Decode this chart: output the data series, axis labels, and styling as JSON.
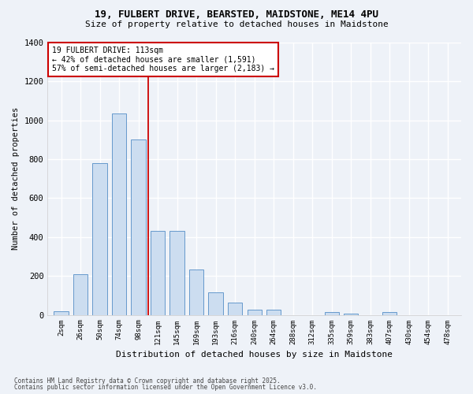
{
  "title_line1": "19, FULBERT DRIVE, BEARSTED, MAIDSTONE, ME14 4PU",
  "title_line2": "Size of property relative to detached houses in Maidstone",
  "xlabel": "Distribution of detached houses by size in Maidstone",
  "ylabel": "Number of detached properties",
  "bar_color": "#ccddf0",
  "bar_edge_color": "#6699cc",
  "background_color": "#eef2f8",
  "grid_color": "#ffffff",
  "categories": [
    "2sqm",
    "26sqm",
    "50sqm",
    "74sqm",
    "98sqm",
    "121sqm",
    "145sqm",
    "169sqm",
    "193sqm",
    "216sqm",
    "240sqm",
    "264sqm",
    "288sqm",
    "312sqm",
    "335sqm",
    "359sqm",
    "383sqm",
    "407sqm",
    "430sqm",
    "454sqm",
    "478sqm"
  ],
  "values": [
    20,
    210,
    780,
    1035,
    900,
    430,
    430,
    235,
    115,
    65,
    25,
    25,
    0,
    0,
    15,
    5,
    0,
    15,
    0,
    0,
    0
  ],
  "annotation_label": "19 FULBERT DRIVE: 113sqm",
  "annotation_line2": "← 42% of detached houses are smaller (1,591)",
  "annotation_line3": "57% of semi-detached houses are larger (2,183) →",
  "vline_bin_index": 5,
  "ylim": [
    0,
    1400
  ],
  "yticks": [
    0,
    200,
    400,
    600,
    800,
    1000,
    1200,
    1400
  ],
  "footnote1": "Contains HM Land Registry data © Crown copyright and database right 2025.",
  "footnote2": "Contains public sector information licensed under the Open Government Licence v3.0."
}
